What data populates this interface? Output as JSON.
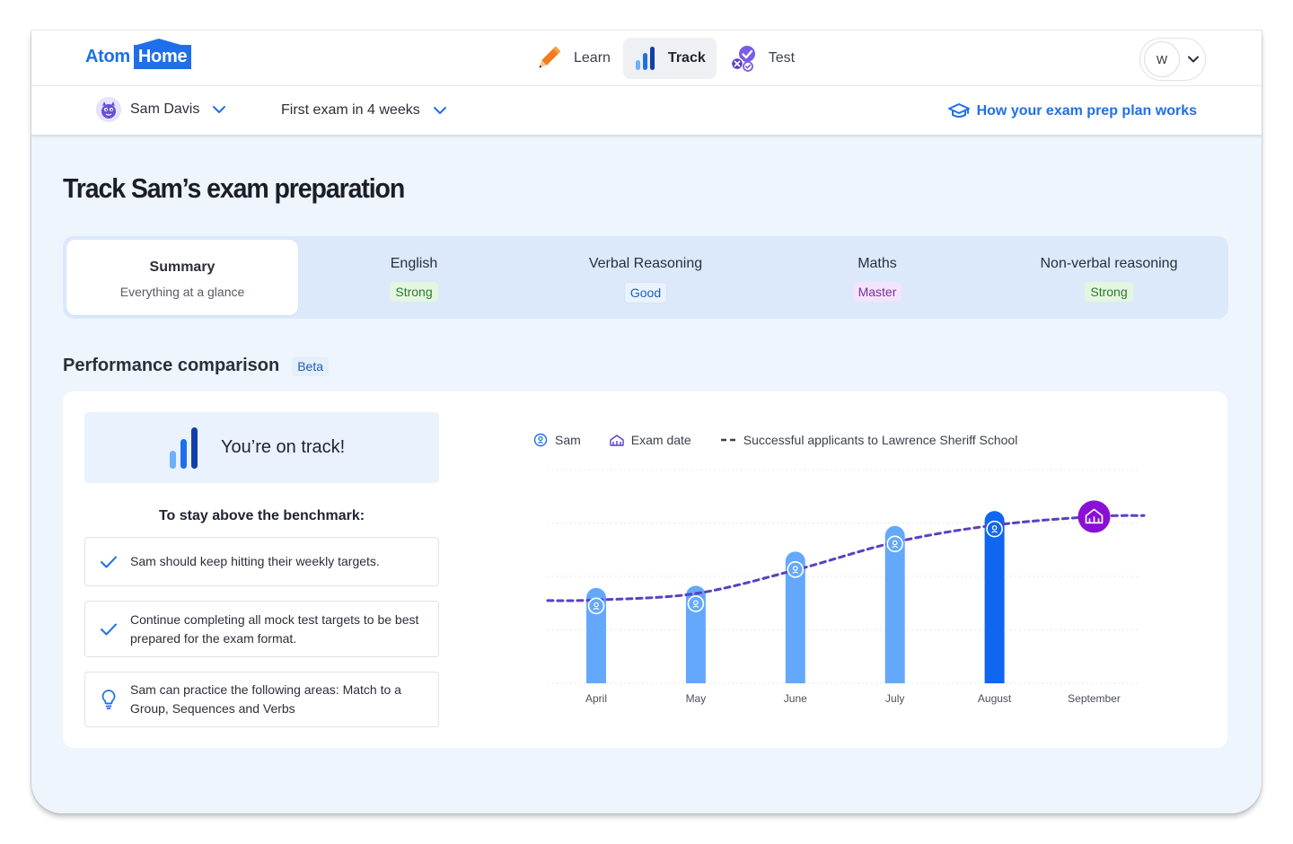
{
  "brand": {
    "atom": "Atom",
    "home": "Home"
  },
  "nav": {
    "learn": "Learn",
    "track": "Track",
    "test": "Test"
  },
  "user": {
    "initial": "W"
  },
  "subbar": {
    "child_name": "Sam Davis",
    "exam_select": "First exam in 4 weeks",
    "how_link": "How your exam prep plan works"
  },
  "page_title": "Track Sam’s exam preparation",
  "tabs": [
    {
      "title": "Summary",
      "sub": "Everything at a glance"
    },
    {
      "title": "English",
      "badge": "Strong"
    },
    {
      "title": "Verbal Reasoning",
      "badge": "Good"
    },
    {
      "title": "Maths",
      "badge": "Master"
    },
    {
      "title": "Non-verbal reasoning",
      "badge": "Strong"
    }
  ],
  "section": {
    "title": "Performance comparison",
    "beta": "Beta"
  },
  "status": {
    "on_track": "You’re on track!"
  },
  "benchmark": {
    "title": "To stay above the benchmark:",
    "tips": [
      "Sam should keep hitting their weekly targets.",
      "Continue completing all mock test targets to be best prepared for the exam format.",
      "Sam can practice the following areas: Match to a Group, Sequences and Verbs"
    ]
  },
  "legend": {
    "sam": "Sam",
    "exam": "Exam date",
    "benchmark": "Successful applicants to Lawrence Sheriff School"
  },
  "colors": {
    "brand": "#1f6fe8",
    "bar": "#64a8fb",
    "bar_current": "#0f66f0",
    "benchmark_line": "#5b3fc4",
    "exam_marker": "#8b10d6"
  },
  "chart_data": {
    "type": "bar",
    "categories": [
      "April",
      "May",
      "June",
      "July",
      "August",
      "September"
    ],
    "series": [
      {
        "name": "Sam",
        "values": [
          40,
          41,
          57,
          69,
          76,
          null
        ]
      },
      {
        "name": "Successful applicants to Lawrence Sheriff School",
        "type": "line",
        "style": "dashed",
        "values": [
          39,
          42,
          53,
          66,
          74,
          78
        ]
      }
    ],
    "highlight": "August",
    "exam_date": "September",
    "ylim": [
      0,
      100
    ],
    "grid": true,
    "legend_position": "top-left"
  }
}
